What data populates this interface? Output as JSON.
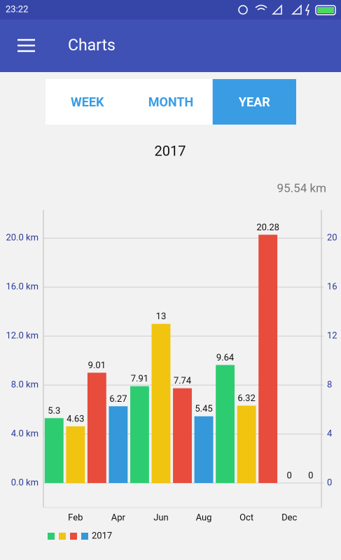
{
  "status_bar": {
    "time": "23:22"
  },
  "app_bar": {
    "title": "Charts"
  },
  "tabs": [
    {
      "label": "WEEK"
    },
    {
      "label": "MONTH"
    },
    {
      "label": "YEAR",
      "selected": true
    }
  ],
  "period": "2017",
  "total": "95.54 km",
  "chart_data": {
    "type": "bar",
    "categories": [
      null,
      "Feb",
      null,
      "Apr",
      null,
      "Jun",
      null,
      "Aug",
      null,
      "Oct",
      null,
      "Dec",
      null
    ],
    "series": [
      {
        "name": "2017",
        "colors": [
          "#2ecc71",
          "#f1c40f",
          "#e74c3c",
          "#3498db",
          "#2ecc71",
          "#f1c40f",
          "#e74c3c",
          "#3498db",
          "#2ecc71",
          "#f1c40f",
          "#e74c3c",
          "#3498db",
          "#2ecc71"
        ],
        "values": [
          5.3,
          4.63,
          9.01,
          6.27,
          7.91,
          13,
          7.74,
          5.45,
          9.64,
          6.32,
          20.28,
          0,
          0
        ]
      }
    ],
    "ylim": [
      -2,
      22.3
    ],
    "yticks": [
      {
        "value": 0,
        "label": "0.0 km"
      },
      {
        "value": 4,
        "label": "4.0 km"
      },
      {
        "value": 8,
        "label": "8.0 km"
      },
      {
        "value": 12,
        "label": "12.0 km"
      },
      {
        "value": 16,
        "label": "16.0 km"
      },
      {
        "value": 20,
        "label": "20.0 km"
      }
    ],
    "y2lim": [
      -2,
      22.3
    ],
    "y2ticks": [
      0,
      4,
      8,
      12,
      16,
      20
    ],
    "grid": true,
    "legend": "bottom-left"
  }
}
